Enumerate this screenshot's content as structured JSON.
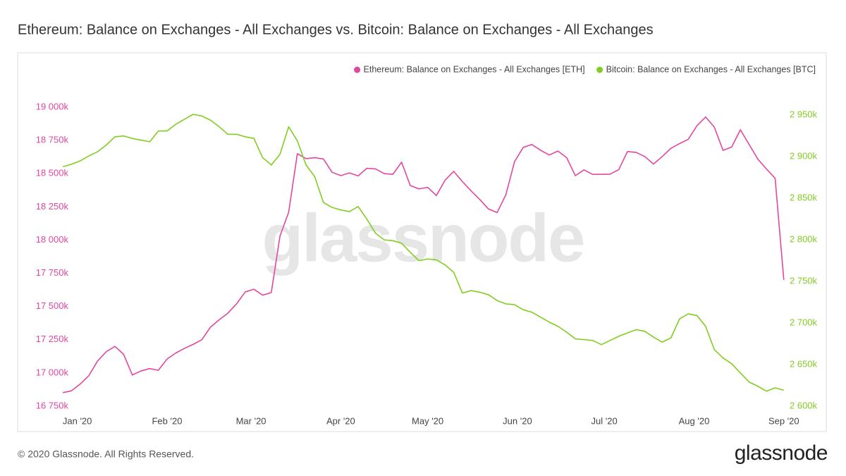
{
  "chart_data": {
    "type": "line",
    "title": "Ethereum: Balance on Exchanges - All Exchanges vs. Bitcoin: Balance on Exchanges - All Exchanges",
    "watermark": "glassnode",
    "copyright": "© 2020 Glassnode. All Rights Reserved.",
    "logo": "glassnode",
    "legend": "top-right",
    "grid": false,
    "xlim": [
      "2019-12-26",
      "2020-09-03"
    ],
    "xticks": [
      {
        "value": "2020-01-01",
        "label": "Jan '20"
      },
      {
        "value": "2020-02-01",
        "label": "Feb '20"
      },
      {
        "value": "2020-03-01",
        "label": "Mar '20"
      },
      {
        "value": "2020-04-01",
        "label": "Apr '20"
      },
      {
        "value": "2020-05-01",
        "label": "May '20"
      },
      {
        "value": "2020-06-01",
        "label": "Jun '20"
      },
      {
        "value": "2020-07-01",
        "label": "Jul '20"
      },
      {
        "value": "2020-08-01",
        "label": "Aug '20"
      },
      {
        "value": "2020-09-01",
        "label": "Sep '20"
      }
    ],
    "ylim": [
      16713,
      19090
    ],
    "yticks": [
      {
        "value": 16750,
        "label": "16 750k"
      },
      {
        "value": 17000,
        "label": "17 000k"
      },
      {
        "value": 17250,
        "label": "17 250k"
      },
      {
        "value": 17500,
        "label": "17 500k"
      },
      {
        "value": 17750,
        "label": "17 750k"
      },
      {
        "value": 18000,
        "label": "18 000k"
      },
      {
        "value": 18250,
        "label": "18 250k"
      },
      {
        "value": 18500,
        "label": "18 500k"
      },
      {
        "value": 18750,
        "label": "18 750k"
      },
      {
        "value": 19000,
        "label": "19 000k"
      }
    ],
    "y2lim": [
      2594,
      2974
    ],
    "y2ticks": [
      {
        "value": 2600,
        "label": "2 600k"
      },
      {
        "value": 2650,
        "label": "2 650k"
      },
      {
        "value": 2700,
        "label": "2 700k"
      },
      {
        "value": 2750,
        "label": "2 750k"
      },
      {
        "value": 2800,
        "label": "2 800k"
      },
      {
        "value": 2850,
        "label": "2 850k"
      },
      {
        "value": 2900,
        "label": "2 900k"
      },
      {
        "value": 2950,
        "label": "2 950k"
      }
    ],
    "x": [
      "2019-12-27",
      "2019-12-30",
      "2020-01-02",
      "2020-01-05",
      "2020-01-08",
      "2020-01-11",
      "2020-01-14",
      "2020-01-17",
      "2020-01-20",
      "2020-01-23",
      "2020-01-26",
      "2020-01-29",
      "2020-02-01",
      "2020-02-04",
      "2020-02-07",
      "2020-02-10",
      "2020-02-13",
      "2020-02-16",
      "2020-02-19",
      "2020-02-22",
      "2020-02-25",
      "2020-02-28",
      "2020-03-02",
      "2020-03-05",
      "2020-03-08",
      "2020-03-11",
      "2020-03-14",
      "2020-03-17",
      "2020-03-20",
      "2020-03-23",
      "2020-03-26",
      "2020-03-29",
      "2020-04-01",
      "2020-04-04",
      "2020-04-07",
      "2020-04-10",
      "2020-04-13",
      "2020-04-16",
      "2020-04-19",
      "2020-04-22",
      "2020-04-25",
      "2020-04-28",
      "2020-05-01",
      "2020-05-04",
      "2020-05-07",
      "2020-05-10",
      "2020-05-13",
      "2020-05-16",
      "2020-05-19",
      "2020-05-22",
      "2020-05-25",
      "2020-05-28",
      "2020-05-31",
      "2020-06-03",
      "2020-06-06",
      "2020-06-09",
      "2020-06-12",
      "2020-06-15",
      "2020-06-18",
      "2020-06-21",
      "2020-06-24",
      "2020-06-27",
      "2020-06-30",
      "2020-07-03",
      "2020-07-06",
      "2020-07-09",
      "2020-07-12",
      "2020-07-15",
      "2020-07-18",
      "2020-07-21",
      "2020-07-24",
      "2020-07-27",
      "2020-07-30",
      "2020-08-02",
      "2020-08-05",
      "2020-08-08",
      "2020-08-11",
      "2020-08-14",
      "2020-08-17",
      "2020-08-20",
      "2020-08-23",
      "2020-08-26",
      "2020-08-29",
      "2020-09-01"
    ],
    "series": [
      {
        "name": "Ethereum: Balance on Exchanges - All Exchanges [ETH]",
        "color": "#e2479f",
        "axis": "y",
        "values": [
          16852,
          16866,
          16917,
          16980,
          17090,
          17160,
          17200,
          17140,
          16985,
          17015,
          17033,
          17020,
          17105,
          17150,
          17185,
          17215,
          17250,
          17345,
          17400,
          17450,
          17520,
          17610,
          17630,
          17585,
          17605,
          18030,
          18210,
          18650,
          18613,
          18620,
          18610,
          18510,
          18485,
          18505,
          18483,
          18540,
          18535,
          18500,
          18495,
          18586,
          18410,
          18385,
          18397,
          18335,
          18450,
          18517,
          18440,
          18370,
          18305,
          18234,
          18207,
          18340,
          18590,
          18697,
          18719,
          18676,
          18640,
          18670,
          18620,
          18485,
          18528,
          18494,
          18495,
          18496,
          18530,
          18666,
          18660,
          18628,
          18572,
          18628,
          18690,
          18726,
          18758,
          18860,
          18926,
          18850,
          18675,
          18700,
          18830,
          18720,
          18610,
          18535,
          18465,
          17700
        ]
      },
      {
        "name": "Bitcoin: Balance on Exchanges - All Exchanges [BTC]",
        "color": "#82cd22",
        "axis": "y2",
        "values": [
          2888,
          2891,
          2895,
          2901,
          2906,
          2914,
          2924,
          2925,
          2922,
          2920,
          2918,
          2931,
          2931,
          2939,
          2945,
          2951,
          2949,
          2944,
          2936,
          2927,
          2927,
          2924,
          2922,
          2899,
          2890,
          2903,
          2936,
          2919,
          2890,
          2876,
          2845,
          2839,
          2836,
          2834,
          2840,
          2825,
          2808,
          2800,
          2799,
          2796,
          2785,
          2775,
          2777,
          2776,
          2770,
          2761,
          2736,
          2739,
          2737,
          2734,
          2727,
          2723,
          2722,
          2716,
          2713,
          2707,
          2701,
          2696,
          2689,
          2681,
          2680,
          2679,
          2674,
          2679,
          2684,
          2688,
          2692,
          2690,
          2683,
          2677,
          2682,
          2705,
          2711,
          2709,
          2696,
          2668,
          2658,
          2651,
          2640,
          2629,
          2624,
          2618,
          2622,
          2619
        ]
      }
    ]
  }
}
